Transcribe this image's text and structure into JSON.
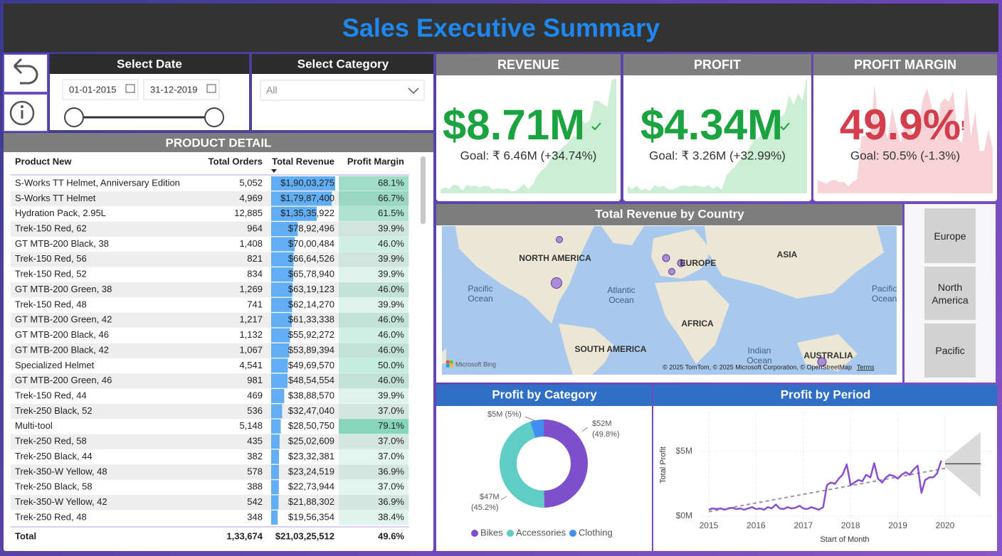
{
  "header": {
    "title": "Sales Executive Summary"
  },
  "controls": {
    "date": {
      "title": "Select Date",
      "start": "01-01-2015",
      "end": "31-12-2019"
    },
    "category": {
      "title": "Select Category",
      "value": "All"
    }
  },
  "table": {
    "title": "PRODUCT DETAIL",
    "columns": [
      "Product New",
      "Total Orders",
      "Total Revenue",
      "Profit Margin"
    ],
    "rows": [
      [
        "S-Works TT Helmet, Anniversary Edition",
        "5,052",
        {
          "value": 19003275,
          "label": "$1,90,03,275"
        },
        {
          "value": 68.1,
          "label": "68.1%"
        }
      ],
      [
        "S-Works TT Helmet",
        "4,969",
        {
          "value": 17987400,
          "label": "$1,79,87,400"
        },
        {
          "value": 66.7,
          "label": "66.7%"
        }
      ],
      [
        "Hydration Pack, 2.95L",
        "12,885",
        {
          "value": 13535922,
          "label": "$1,35,35,922"
        },
        {
          "value": 61.5,
          "label": "61.5%"
        }
      ],
      [
        "Trek-150 Red, 62",
        "964",
        {
          "value": 7892496,
          "label": "$78,92,496"
        },
        {
          "value": 39.9,
          "label": "39.9%"
        }
      ],
      [
        "GT MTB-200 Black, 38",
        "1,408",
        {
          "value": 7000484,
          "label": "$70,00,484"
        },
        {
          "value": 46.0,
          "label": "46.0%"
        }
      ],
      [
        "Trek-150 Red, 56",
        "821",
        {
          "value": 6664526,
          "label": "$66,64,526"
        },
        {
          "value": 39.9,
          "label": "39.9%"
        }
      ],
      [
        "Trek-150 Red, 52",
        "834",
        {
          "value": 6578940,
          "label": "$65,78,940"
        },
        {
          "value": 39.9,
          "label": "39.9%"
        }
      ],
      [
        "GT MTB-200 Green, 38",
        "1,269",
        {
          "value": 6319123,
          "label": "$63,19,123"
        },
        {
          "value": 46.0,
          "label": "46.0%"
        }
      ],
      [
        "Trek-150 Red, 48",
        "741",
        {
          "value": 6214270,
          "label": "$62,14,270"
        },
        {
          "value": 39.9,
          "label": "39.9%"
        }
      ],
      [
        "GT MTB-200 Green, 42",
        "1,217",
        {
          "value": 6133338,
          "label": "$61,33,338"
        },
        {
          "value": 46.0,
          "label": "46.0%"
        }
      ],
      [
        "GT MTB-200 Black, 46",
        "1,132",
        {
          "value": 5592272,
          "label": "$55,92,272"
        },
        {
          "value": 46.0,
          "label": "46.0%"
        }
      ],
      [
        "GT MTB-200 Black, 42",
        "1,067",
        {
          "value": 5389394,
          "label": "$53,89,394"
        },
        {
          "value": 46.0,
          "label": "46.0%"
        }
      ],
      [
        "Specialized Helmet",
        "4,541",
        {
          "value": 4969570,
          "label": "$49,69,570"
        },
        {
          "value": 50.0,
          "label": "50.0%"
        }
      ],
      [
        "GT MTB-200 Green, 46",
        "981",
        {
          "value": 4854554,
          "label": "$48,54,554"
        },
        {
          "value": 46.0,
          "label": "46.0%"
        }
      ],
      [
        "Trek-150 Red, 44",
        "469",
        {
          "value": 3888570,
          "label": "$38,88,570"
        },
        {
          "value": 39.9,
          "label": "39.9%"
        }
      ],
      [
        "Trek-250 Black, 52",
        "536",
        {
          "value": 3247040,
          "label": "$32,47,040"
        },
        {
          "value": 37.0,
          "label": "37.0%"
        }
      ],
      [
        "Multi-tool",
        "5,148",
        {
          "value": 2850750,
          "label": "$28,50,750"
        },
        {
          "value": 79.1,
          "label": "79.1%"
        }
      ],
      [
        "Trek-250 Red, 58",
        "435",
        {
          "value": 2502609,
          "label": "$25,02,609"
        },
        {
          "value": 37.0,
          "label": "37.0%"
        }
      ],
      [
        "Trek-250 Black, 44",
        "382",
        {
          "value": 2332381,
          "label": "$23,32,381"
        },
        {
          "value": 37.0,
          "label": "37.0%"
        }
      ],
      [
        "Trek-350-W Yellow, 48",
        "578",
        {
          "value": 2324519,
          "label": "$23,24,519"
        },
        {
          "value": 36.9,
          "label": "36.9%"
        }
      ],
      [
        "Trek-250 Black, 58",
        "388",
        {
          "value": 2273944,
          "label": "$22,73,944"
        },
        {
          "value": 37.0,
          "label": "37.0%"
        }
      ],
      [
        "Trek-350-W Yellow, 42",
        "542",
        {
          "value": 2188302,
          "label": "$21,88,302"
        },
        {
          "value": 36.9,
          "label": "36.9%"
        }
      ],
      [
        "Trek-250 Red, 48",
        "348",
        {
          "value": 1956354,
          "label": "$19,56,354"
        },
        {
          "value": 38.4,
          "label": "38.4%"
        }
      ]
    ],
    "total": [
      "Total",
      "1,33,674",
      "$21,03,25,512",
      "49.6%"
    ]
  },
  "kpis": [
    {
      "title": "REVENUE",
      "value": "$8.71M",
      "goal": "Goal: ₹ 6.46M (+34.74%)",
      "color": "#1aa33e"
    },
    {
      "title": "PROFIT",
      "value": "$4.34M",
      "goal": "Goal: ₹ 3.26M (+32.99%)",
      "color": "#1aa33e"
    },
    {
      "title": "PROFIT MARGIN",
      "value": "49.9%",
      "goal": "Goal: 50.5% (-1.3%)",
      "color": "#d33d4c",
      "flag": "!"
    }
  ],
  "map": {
    "title": "Total Revenue by Country",
    "continents": [
      "NORTH AMERICA",
      "EUROPE",
      "ASIA",
      "AFRICA",
      "SOUTH AMERICA",
      "AUSTRALIA"
    ],
    "oceans": [
      "Pacific Ocean",
      "Atlantic Ocean",
      "Indian Ocean",
      "Pacific Ocean"
    ],
    "provider": "Microsoft Bing",
    "attribution": "© 2025 TomTom, © 2025 Microsoft Corporation, © OpenStreetMap",
    "terms": "Terms"
  },
  "regions": [
    "Europe",
    "North America",
    "Pacific"
  ],
  "chart_data": [
    {
      "type": "donut",
      "title": "Profit by Category",
      "categories": [
        "Bikes",
        "Accessories",
        "Clothing"
      ],
      "values": [
        49.8,
        45.2,
        5
      ],
      "value_labels": [
        [
          "$52M",
          "(49.8%)"
        ],
        [
          "$47M",
          "(45.2%)"
        ],
        [
          "$5M (5%)"
        ]
      ],
      "colors": [
        "#7d4fcd",
        "#5ecdc6",
        "#3f8ef0"
      ]
    },
    {
      "type": "line",
      "title": "Profit by Period",
      "x_label": "Start of Month",
      "y_label": "Total Profit",
      "x": [
        2015,
        2015.08,
        2015.17,
        2015.25,
        2015.33,
        2015.42,
        2015.5,
        2015.58,
        2015.67,
        2015.75,
        2015.83,
        2015.92,
        2016,
        2016.08,
        2016.17,
        2016.25,
        2016.33,
        2016.42,
        2016.5,
        2016.58,
        2016.67,
        2016.75,
        2016.83,
        2016.92,
        2017,
        2017.08,
        2017.17,
        2017.25,
        2017.33,
        2017.42,
        2017.5,
        2017.58,
        2017.67,
        2017.75,
        2017.83,
        2017.92,
        2018,
        2018.08,
        2018.17,
        2018.25,
        2018.33,
        2018.42,
        2018.5,
        2018.58,
        2018.67,
        2018.75,
        2018.83,
        2018.92,
        2019,
        2019.08,
        2019.17,
        2019.25,
        2019.33,
        2019.42,
        2019.5,
        2019.58,
        2019.67,
        2019.75,
        2019.83,
        2019.92
      ],
      "series": [
        {
          "color": "#8a4fd0",
          "values": [
            0.5,
            0.6,
            0.55,
            0.6,
            0.5,
            0.6,
            0.65,
            0.55,
            0.6,
            0.5,
            0.6,
            0.7,
            0.55,
            0.6,
            0.5,
            0.7,
            0.6,
            0.9,
            0.6,
            0.55,
            0.7,
            0.6,
            0.65,
            0.8,
            0.6,
            0.55,
            0.7,
            0.6,
            0.5,
            0.7,
            2.4,
            2.6,
            2.5,
            2.9,
            3.2,
            4.0,
            2.4,
            2.6,
            2.8,
            2.7,
            3.2,
            3.0,
            4.1,
            2.9,
            2.6,
            3.0,
            3.2,
            3.1,
            2.9,
            3.2,
            3.4,
            3.2,
            3.6,
            3.9,
            1.8,
            2.8,
            3.0,
            3.0,
            3.3,
            4.3
          ]
        }
      ],
      "trend": {
        "x": [
          2015,
          2020
        ],
        "values": [
          0.35,
          3.7
        ]
      },
      "forecast": {
        "x": [
          2020,
          2020.75
        ],
        "values": [
          4.05,
          4.05
        ],
        "upper": [
          4.3,
          6.5
        ],
        "lower": [
          3.8,
          1.5
        ]
      },
      "xlim": [
        2014.83,
        2021
      ],
      "ylim": [
        -0.5,
        8
      ],
      "xticks": [
        2015,
        2016,
        2017,
        2018,
        2019,
        2020
      ],
      "yticks": [
        {
          "value": 0,
          "label": "$0M"
        },
        {
          "value": 5,
          "label": "$5M"
        }
      ],
      "grid": true
    }
  ]
}
